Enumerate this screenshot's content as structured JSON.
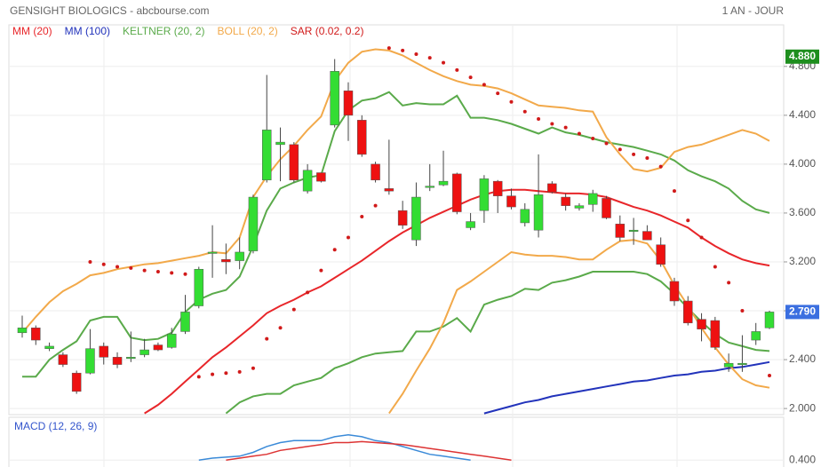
{
  "chart_data": {
    "type": "candlestick",
    "title": "GENSIGHT BIOLOGICS - abcbourse.com",
    "period": "1 AN - JOUR",
    "ylim": [
      1.95,
      5.14
    ],
    "yticks": [
      {
        "value": 2.0,
        "label": "2.000"
      },
      {
        "value": 2.4,
        "label": "2.400"
      },
      {
        "value": 2.8,
        "label": "2.800"
      },
      {
        "value": 3.2,
        "label": "3.200"
      },
      {
        "value": 3.6,
        "label": "3.600"
      },
      {
        "value": 4.0,
        "label": "4.000"
      },
      {
        "value": 4.4,
        "label": "4.400"
      },
      {
        "value": 4.8,
        "label": "4.800"
      }
    ],
    "grid": true,
    "up_color": "#33dd33",
    "down_color": "#ee1111",
    "candles": {
      "open": [
        2.62,
        2.66,
        2.49,
        2.44,
        2.29,
        2.29,
        2.51,
        2.42,
        2.41,
        2.44,
        2.52,
        2.5,
        2.63,
        2.84,
        3.27,
        3.22,
        3.21,
        3.29,
        3.87,
        4.16,
        4.16,
        3.78,
        3.93,
        4.32,
        4.6,
        4.36,
        4.0,
        3.8,
        3.62,
        3.38,
        3.81,
        3.83,
        3.92,
        3.48,
        3.62,
        3.86,
        3.74,
        3.52,
        3.46,
        3.84,
        3.73,
        3.64,
        3.67,
        3.72,
        3.51,
        3.45,
        3.45,
        3.34,
        3.04,
        2.88,
        2.73,
        2.72,
        2.34,
        2.36,
        2.56,
        2.66
      ],
      "high": [
        2.76,
        2.68,
        2.54,
        2.46,
        2.31,
        2.65,
        2.54,
        2.46,
        2.63,
        2.57,
        2.54,
        2.66,
        2.93,
        3.16,
        3.5,
        3.35,
        3.4,
        3.75,
        4.73,
        4.3,
        4.18,
        4.0,
        3.93,
        4.86,
        4.67,
        4.4,
        4.02,
        4.2,
        3.7,
        3.85,
        4.0,
        4.11,
        3.93,
        3.6,
        3.91,
        3.87,
        3.8,
        3.68,
        4.08,
        3.86,
        3.76,
        3.68,
        3.79,
        3.74,
        3.58,
        3.56,
        3.5,
        3.4,
        3.07,
        2.92,
        2.78,
        2.75,
        2.45,
        2.6,
        2.7,
        2.8
      ],
      "low": [
        2.58,
        2.52,
        2.47,
        2.34,
        2.12,
        2.28,
        2.36,
        2.33,
        2.38,
        2.42,
        2.47,
        2.49,
        2.61,
        2.82,
        3.07,
        3.1,
        3.14,
        3.27,
        3.85,
        3.86,
        3.85,
        3.76,
        3.85,
        4.3,
        4.19,
        4.06,
        3.85,
        3.75,
        3.47,
        3.33,
        3.78,
        3.82,
        3.59,
        3.46,
        3.52,
        3.6,
        3.63,
        3.49,
        3.4,
        3.76,
        3.62,
        3.62,
        3.61,
        3.55,
        3.37,
        3.34,
        3.38,
        3.16,
        2.84,
        2.68,
        2.55,
        2.48,
        2.3,
        2.3,
        2.52,
        2.65
      ],
      "close": [
        2.66,
        2.56,
        2.51,
        2.36,
        2.14,
        2.49,
        2.42,
        2.36,
        2.42,
        2.48,
        2.48,
        2.61,
        2.79,
        3.14,
        3.28,
        3.2,
        3.28,
        3.73,
        4.28,
        4.18,
        3.87,
        3.95,
        3.86,
        4.76,
        4.4,
        4.08,
        3.87,
        3.78,
        3.5,
        3.73,
        3.82,
        3.86,
        3.61,
        3.53,
        3.88,
        3.74,
        3.65,
        3.63,
        3.75,
        3.77,
        3.66,
        3.66,
        3.76,
        3.56,
        3.4,
        3.46,
        3.38,
        3.18,
        2.88,
        2.7,
        2.65,
        2.5,
        2.37,
        2.37,
        2.63,
        2.79
      ]
    },
    "indicators": [
      {
        "name": "MM (20)",
        "color": "#e8262a",
        "values": [
          null,
          null,
          null,
          null,
          null,
          null,
          null,
          null,
          null,
          1.96,
          2.03,
          2.12,
          2.22,
          2.32,
          2.42,
          2.5,
          2.59,
          2.68,
          2.78,
          2.84,
          2.89,
          2.95,
          3.0,
          3.07,
          3.14,
          3.21,
          3.29,
          3.37,
          3.44,
          3.5,
          3.56,
          3.61,
          3.66,
          3.71,
          3.75,
          3.78,
          3.79,
          3.79,
          3.78,
          3.77,
          3.76,
          3.76,
          3.75,
          3.73,
          3.69,
          3.65,
          3.62,
          3.58,
          3.53,
          3.48,
          3.4,
          3.33,
          3.27,
          3.22,
          3.19,
          3.17
        ]
      },
      {
        "name": "MM (100)",
        "color": "#2233bb",
        "values": [
          null,
          null,
          null,
          null,
          null,
          null,
          null,
          null,
          null,
          null,
          null,
          null,
          null,
          null,
          null,
          null,
          null,
          null,
          null,
          null,
          null,
          null,
          null,
          null,
          null,
          null,
          null,
          null,
          null,
          null,
          null,
          null,
          null,
          null,
          1.96,
          1.99,
          2.02,
          2.05,
          2.07,
          2.1,
          2.12,
          2.14,
          2.16,
          2.18,
          2.2,
          2.22,
          2.23,
          2.25,
          2.27,
          2.28,
          2.3,
          2.31,
          2.33,
          2.34,
          2.36,
          2.38
        ]
      },
      {
        "name": "KELTNER (20, 2)",
        "color": "#5aaa4a",
        "upper": [
          2.26,
          2.26,
          2.4,
          2.48,
          2.55,
          2.72,
          2.75,
          2.75,
          2.58,
          2.56,
          2.57,
          2.62,
          2.79,
          2.89,
          2.94,
          2.97,
          3.08,
          3.33,
          3.62,
          3.8,
          3.85,
          3.89,
          3.91,
          4.27,
          4.44,
          4.52,
          4.54,
          4.59,
          4.48,
          4.5,
          4.49,
          4.49,
          4.56,
          4.38,
          4.38,
          4.36,
          4.33,
          4.29,
          4.25,
          4.3,
          4.26,
          4.24,
          4.21,
          4.18,
          4.16,
          4.14,
          4.11,
          4.08,
          4.03,
          3.95,
          3.9,
          3.86,
          3.8,
          3.7,
          3.63,
          3.6
        ],
        "lower": [
          null,
          null,
          null,
          null,
          null,
          null,
          null,
          null,
          null,
          null,
          null,
          null,
          null,
          null,
          null,
          1.96,
          2.05,
          2.1,
          2.12,
          2.12,
          2.19,
          2.22,
          2.25,
          2.33,
          2.37,
          2.42,
          2.45,
          2.46,
          2.47,
          2.63,
          2.63,
          2.67,
          2.74,
          2.63,
          2.85,
          2.89,
          2.92,
          2.98,
          2.97,
          3.03,
          3.05,
          3.08,
          3.12,
          3.12,
          3.12,
          3.12,
          3.1,
          3.04,
          2.94,
          2.82,
          2.71,
          2.61,
          2.54,
          2.51,
          2.48,
          2.47
        ]
      },
      {
        "name": "BOLL (20, 2)",
        "color": "#f2a94a",
        "upper": [
          2.62,
          2.75,
          2.87,
          2.96,
          3.02,
          3.09,
          3.11,
          3.14,
          3.16,
          3.18,
          3.19,
          3.21,
          3.23,
          3.25,
          3.28,
          3.27,
          3.4,
          3.73,
          3.9,
          4.04,
          4.15,
          4.28,
          4.39,
          4.68,
          4.83,
          4.92,
          4.94,
          4.93,
          4.89,
          4.83,
          4.77,
          4.72,
          4.68,
          4.65,
          4.64,
          4.62,
          4.58,
          4.53,
          4.48,
          4.47,
          4.46,
          4.44,
          4.43,
          4.22,
          4.08,
          3.96,
          3.94,
          3.97,
          4.1,
          4.14,
          4.16,
          4.2,
          4.24,
          4.28,
          4.25,
          4.19
        ],
        "lower": [
          null,
          null,
          null,
          null,
          null,
          null,
          null,
          null,
          null,
          null,
          null,
          null,
          null,
          null,
          null,
          null,
          null,
          null,
          null,
          null,
          null,
          null,
          null,
          null,
          null,
          null,
          null,
          1.96,
          2.12,
          2.31,
          2.49,
          2.7,
          2.97,
          3.04,
          3.12,
          3.2,
          3.28,
          3.26,
          3.25,
          3.25,
          3.24,
          3.22,
          3.22,
          3.3,
          3.37,
          3.38,
          3.35,
          3.21,
          3.01,
          2.84,
          2.66,
          2.5,
          2.36,
          2.24,
          2.19,
          2.17
        ]
      },
      {
        "name": "SAR (0.02, 0.2)",
        "color": "#d11a1a",
        "style": "dots",
        "values": [
          null,
          null,
          null,
          null,
          null,
          3.2,
          3.18,
          3.16,
          3.15,
          3.13,
          3.12,
          3.11,
          3.1,
          2.26,
          2.28,
          2.29,
          2.3,
          2.33,
          2.57,
          2.66,
          2.81,
          2.95,
          3.13,
          3.3,
          3.4,
          3.57,
          3.66,
          4.95,
          4.93,
          4.9,
          4.87,
          4.83,
          4.77,
          4.71,
          4.65,
          4.58,
          4.51,
          4.43,
          4.37,
          4.33,
          4.3,
          4.25,
          4.21,
          4.17,
          4.12,
          4.08,
          4.05,
          3.98,
          3.78,
          3.54,
          3.4,
          3.16,
          3.03,
          2.8,
          2.6,
          2.27
        ]
      }
    ],
    "high_marker": {
      "value": 4.88,
      "label": "4.880",
      "color": "#1e8e1e"
    },
    "last_marker": {
      "value": 2.79,
      "label": "2.790",
      "color": "#3b6fe0"
    },
    "macd": {
      "name": "MACD (12, 26, 9)",
      "ylim": [
        0.36,
        0.62
      ],
      "yticks": [
        {
          "value": 0.4,
          "label": "0.400"
        }
      ],
      "series": [
        {
          "color": "#3a8ad8",
          "values": [
            null,
            null,
            null,
            null,
            null,
            null,
            null,
            null,
            null,
            null,
            null,
            null,
            null,
            0.4,
            0.41,
            0.415,
            0.42,
            0.44,
            0.47,
            0.49,
            0.5,
            0.5,
            0.5,
            0.52,
            0.53,
            0.52,
            0.5,
            0.49,
            0.47,
            0.45,
            0.43,
            0.42,
            0.41,
            0.4,
            null,
            null,
            null,
            null,
            null,
            null,
            null,
            null,
            null,
            null,
            null,
            null,
            null,
            null,
            null,
            null,
            null,
            null,
            null,
            null,
            null,
            null
          ]
        },
        {
          "color": "#dd3333",
          "values": [
            null,
            null,
            null,
            null,
            null,
            null,
            null,
            null,
            null,
            null,
            null,
            null,
            null,
            null,
            null,
            0.4,
            0.41,
            0.42,
            0.43,
            0.45,
            0.46,
            0.47,
            0.48,
            0.49,
            0.49,
            0.495,
            0.49,
            0.485,
            0.48,
            0.47,
            0.46,
            0.45,
            0.44,
            0.43,
            0.42,
            0.41,
            0.4,
            null,
            null,
            null,
            null,
            null,
            null,
            null,
            null,
            null,
            null,
            null,
            null,
            null,
            null,
            null,
            null,
            null,
            null,
            null
          ]
        }
      ]
    }
  }
}
